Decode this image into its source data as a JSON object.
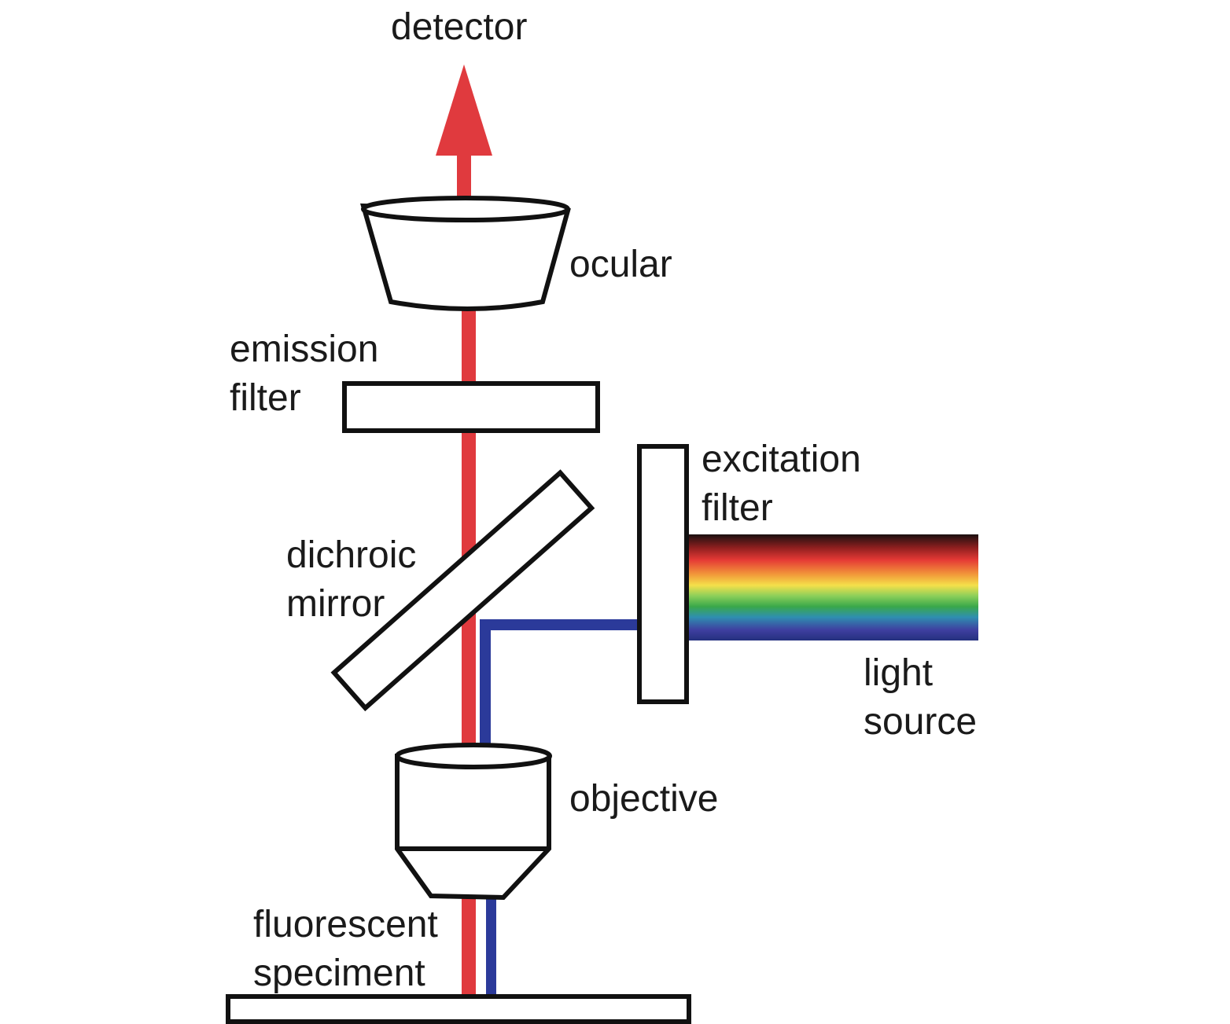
{
  "labels": {
    "detector": "detector",
    "ocular": "ocular",
    "emission_filter": [
      "emission",
      "filter"
    ],
    "excitation_filter": [
      "excitation",
      "filter"
    ],
    "dichroic_mirror": [
      "dichroic",
      "mirror"
    ],
    "light_source": [
      "light",
      "source"
    ],
    "objective": "objective",
    "fluorescent_specimen": [
      "fluorescent",
      "speciment"
    ]
  },
  "colors": {
    "emission_light": "#e03a3e",
    "excitation_light": "#2b3a9a",
    "outline": "#111111",
    "spectrum": [
      "#1a1010",
      "#8a1e1e",
      "#e53935",
      "#f29a3a",
      "#f4e04a",
      "#8ccf5a",
      "#3aa84a",
      "#2f8fb0",
      "#3f3fa0",
      "#24307e"
    ]
  }
}
